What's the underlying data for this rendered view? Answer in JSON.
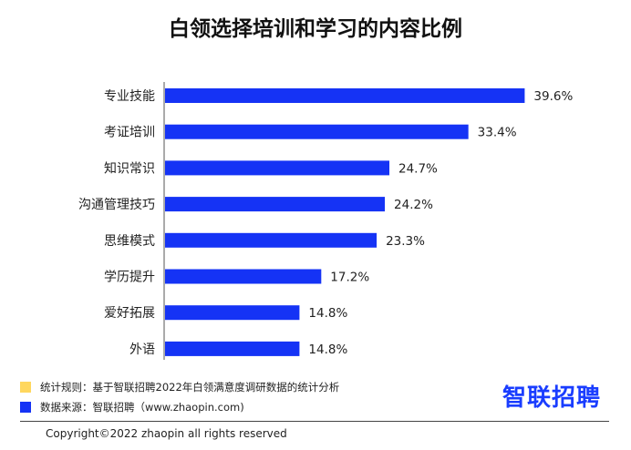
{
  "chart_data": {
    "type": "bar",
    "orientation": "horizontal",
    "title": "白领选择培训和学习的内容比例",
    "categories": [
      "专业技能",
      "考证培训",
      "知识常识",
      "沟通管理技巧",
      "思维模式",
      "学历提升",
      "爱好拓展",
      "外语"
    ],
    "values": [
      39.6,
      33.4,
      24.7,
      24.2,
      23.3,
      17.2,
      14.8,
      14.8
    ],
    "value_labels": [
      "39.6%",
      "33.4%",
      "24.7%",
      "24.2%",
      "23.3%",
      "17.2%",
      "14.8%",
      "14.8%"
    ],
    "bar_color": "#1533f5",
    "xlim": [
      0,
      40
    ],
    "grid": false
  },
  "footnotes": {
    "rule": "统计规则：基于智联招聘2022年白领满意度调研数据的统计分析",
    "source": "数据来源：智联招聘（www.zhaopin.com)",
    "rule_color": "#ffd75e",
    "source_color": "#1533f5"
  },
  "logo": {
    "text": "智联招聘",
    "color": "#1a3dff"
  },
  "copyright": "Copyright©2022 zhaopin all rights reserved"
}
